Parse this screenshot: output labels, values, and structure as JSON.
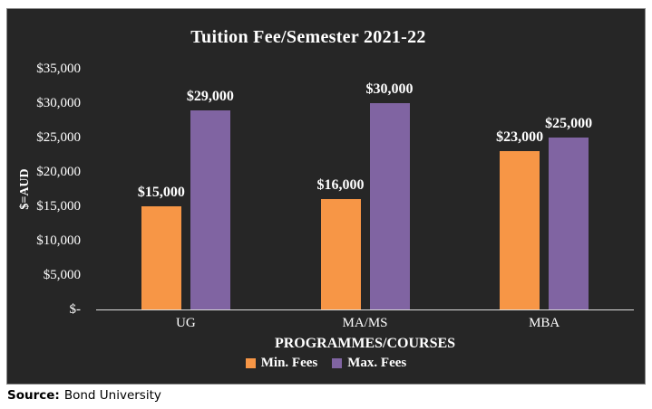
{
  "chart_data": {
    "type": "bar",
    "title": "Tuition Fee/Semester 2021-22",
    "categories": [
      "UG",
      "MA/MS",
      "MBA"
    ],
    "series": [
      {
        "name": "Min. Fees",
        "color": "#F79646",
        "values": [
          15000,
          16000,
          23000
        ],
        "data_labels": [
          "$15,000",
          "$16,000",
          "$23,000"
        ]
      },
      {
        "name": "Max. Fees",
        "color": "#8064A2",
        "values": [
          29000,
          30000,
          25000
        ],
        "data_labels": [
          "$29,000",
          "$30,000",
          "$25,000"
        ]
      }
    ],
    "xlabel": "PROGRAMMES/COURSES",
    "ylabel": "$=AUD",
    "ylim": [
      0,
      35000
    ],
    "yticks": [
      {
        "label": "$35,000",
        "value": 35000
      },
      {
        "label": "$30,000",
        "value": 30000
      },
      {
        "label": "$25,000",
        "value": 25000
      },
      {
        "label": "$20,000",
        "value": 20000
      },
      {
        "label": "$15,000",
        "value": 15000
      },
      {
        "label": "$10,000",
        "value": 10000
      },
      {
        "label": "$5,000",
        "value": 5000
      },
      {
        "label": "$-",
        "value": 0
      }
    ],
    "legend_position": "bottom",
    "grid": false
  },
  "style": {
    "plot_background": "#262626",
    "text_color": "#ffffff",
    "axis_line_color": "#dcdcdc",
    "min_fees_color": "#F79646",
    "max_fees_color": "#8064A2"
  },
  "source": {
    "prefix": "Source:",
    "text": "Bond University"
  }
}
